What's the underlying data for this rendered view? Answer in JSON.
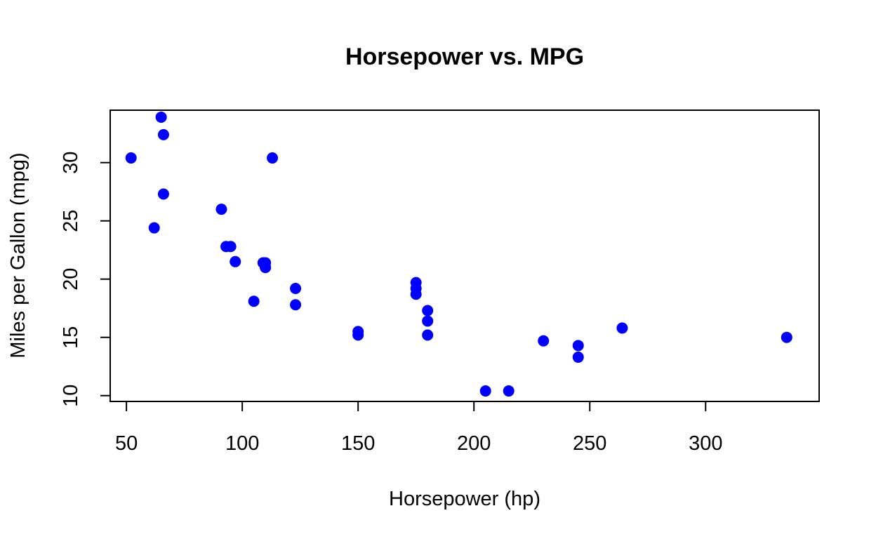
{
  "chart_data": {
    "type": "scatter",
    "title": "Horsepower vs. MPG",
    "xlabel": "Horsepower (hp)",
    "ylabel": "Miles per Gallon (mpg)",
    "xlim": [
      43,
      349
    ],
    "ylim": [
      9.5,
      34.5
    ],
    "xticks": [
      50,
      100,
      150,
      200,
      250,
      300
    ],
    "yticks": [
      10,
      15,
      20,
      25,
      30
    ],
    "grid": false,
    "point_color": "#0000ff",
    "points": [
      {
        "x": 110,
        "y": 21.0
      },
      {
        "x": 110,
        "y": 21.0
      },
      {
        "x": 93,
        "y": 22.8
      },
      {
        "x": 110,
        "y": 21.4
      },
      {
        "x": 175,
        "y": 18.7
      },
      {
        "x": 105,
        "y": 18.1
      },
      {
        "x": 245,
        "y": 14.3
      },
      {
        "x": 62,
        "y": 24.4
      },
      {
        "x": 95,
        "y": 22.8
      },
      {
        "x": 123,
        "y": 19.2
      },
      {
        "x": 123,
        "y": 17.8
      },
      {
        "x": 180,
        "y": 16.4
      },
      {
        "x": 180,
        "y": 17.3
      },
      {
        "x": 180,
        "y": 15.2
      },
      {
        "x": 205,
        "y": 10.4
      },
      {
        "x": 215,
        "y": 10.4
      },
      {
        "x": 230,
        "y": 14.7
      },
      {
        "x": 66,
        "y": 32.4
      },
      {
        "x": 52,
        "y": 30.4
      },
      {
        "x": 65,
        "y": 33.9
      },
      {
        "x": 97,
        "y": 21.5
      },
      {
        "x": 150,
        "y": 15.5
      },
      {
        "x": 150,
        "y": 15.2
      },
      {
        "x": 245,
        "y": 13.3
      },
      {
        "x": 175,
        "y": 19.2
      },
      {
        "x": 66,
        "y": 27.3
      },
      {
        "x": 91,
        "y": 26.0
      },
      {
        "x": 113,
        "y": 30.4
      },
      {
        "x": 264,
        "y": 15.8
      },
      {
        "x": 175,
        "y": 19.7
      },
      {
        "x": 335,
        "y": 15.0
      },
      {
        "x": 109,
        "y": 21.4
      }
    ]
  }
}
